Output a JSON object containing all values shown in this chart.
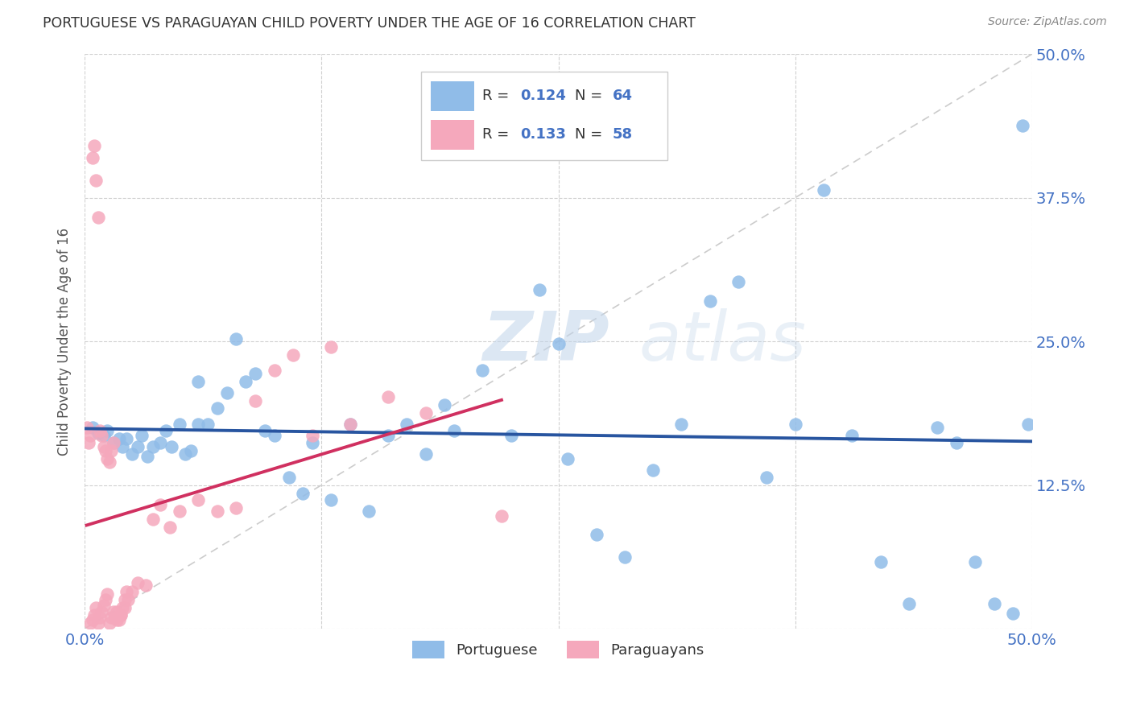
{
  "title": "PORTUGUESE VS PARAGUAYAN CHILD POVERTY UNDER THE AGE OF 16 CORRELATION CHART",
  "source": "Source: ZipAtlas.com",
  "ylabel": "Child Poverty Under the Age of 16",
  "xlim": [
    0.0,
    0.5
  ],
  "ylim": [
    0.0,
    0.5
  ],
  "xticks": [
    0.0,
    0.125,
    0.25,
    0.375,
    0.5
  ],
  "yticks": [
    0.0,
    0.125,
    0.25,
    0.375,
    0.5
  ],
  "xticklabels": [
    "0.0%",
    "",
    "",
    "",
    "50.0%"
  ],
  "yticklabels_right": [
    "",
    "12.5%",
    "25.0%",
    "37.5%",
    "50.0%"
  ],
  "portuguese_R": "0.124",
  "portuguese_N": "64",
  "paraguayan_R": "0.133",
  "paraguayan_N": "58",
  "portuguese_color": "#90bce8",
  "paraguayan_color": "#f5a8bc",
  "regression_blue": "#2855a0",
  "regression_pink": "#d03060",
  "diagonal_color": "#cccccc",
  "background_color": "#ffffff",
  "watermark_zip": "ZIP",
  "watermark_atlas": "atlas",
  "grid_color": "#d0d0d0",
  "title_color": "#333333",
  "tick_color": "#4472c4",
  "source_color": "#888888",
  "legend_border": "#cccccc",
  "portuguese_x": [
    0.004,
    0.007,
    0.01,
    0.012,
    0.015,
    0.018,
    0.02,
    0.022,
    0.025,
    0.028,
    0.03,
    0.033,
    0.036,
    0.04,
    0.043,
    0.046,
    0.05,
    0.053,
    0.056,
    0.06,
    0.065,
    0.07,
    0.075,
    0.08,
    0.085,
    0.09,
    0.095,
    0.1,
    0.108,
    0.115,
    0.12,
    0.13,
    0.14,
    0.15,
    0.16,
    0.17,
    0.18,
    0.195,
    0.21,
    0.225,
    0.24,
    0.255,
    0.27,
    0.285,
    0.3,
    0.315,
    0.33,
    0.345,
    0.36,
    0.375,
    0.39,
    0.405,
    0.42,
    0.435,
    0.45,
    0.46,
    0.47,
    0.48,
    0.49,
    0.495,
    0.498,
    0.25,
    0.19,
    0.06
  ],
  "portuguese_y": [
    0.175,
    0.17,
    0.168,
    0.172,
    0.162,
    0.165,
    0.158,
    0.165,
    0.152,
    0.158,
    0.168,
    0.15,
    0.158,
    0.162,
    0.172,
    0.158,
    0.178,
    0.152,
    0.155,
    0.215,
    0.178,
    0.192,
    0.205,
    0.252,
    0.215,
    0.222,
    0.172,
    0.168,
    0.132,
    0.118,
    0.162,
    0.112,
    0.178,
    0.102,
    0.168,
    0.178,
    0.152,
    0.172,
    0.225,
    0.168,
    0.295,
    0.148,
    0.082,
    0.062,
    0.138,
    0.178,
    0.285,
    0.302,
    0.132,
    0.178,
    0.382,
    0.168,
    0.058,
    0.022,
    0.175,
    0.162,
    0.058,
    0.022,
    0.013,
    0.438,
    0.178,
    0.248,
    0.195,
    0.178
  ],
  "paraguayan_x": [
    0.001,
    0.002,
    0.003,
    0.004,
    0.005,
    0.006,
    0.007,
    0.008,
    0.009,
    0.01,
    0.011,
    0.012,
    0.013,
    0.014,
    0.015,
    0.016,
    0.017,
    0.018,
    0.019,
    0.02,
    0.021,
    0.022,
    0.003,
    0.004,
    0.005,
    0.006,
    0.007,
    0.008,
    0.009,
    0.01,
    0.011,
    0.012,
    0.013,
    0.014,
    0.015,
    0.017,
    0.019,
    0.021,
    0.023,
    0.025,
    0.028,
    0.032,
    0.036,
    0.04,
    0.045,
    0.05,
    0.06,
    0.07,
    0.08,
    0.09,
    0.1,
    0.11,
    0.12,
    0.13,
    0.14,
    0.16,
    0.18,
    0.22
  ],
  "paraguayan_y": [
    0.175,
    0.162,
    0.168,
    0.41,
    0.42,
    0.39,
    0.358,
    0.172,
    0.168,
    0.158,
    0.155,
    0.148,
    0.145,
    0.155,
    0.162,
    0.01,
    0.015,
    0.008,
    0.012,
    0.018,
    0.025,
    0.032,
    0.005,
    0.008,
    0.012,
    0.018,
    0.005,
    0.01,
    0.015,
    0.02,
    0.025,
    0.03,
    0.005,
    0.01,
    0.015,
    0.008,
    0.012,
    0.018,
    0.025,
    0.032,
    0.04,
    0.038,
    0.095,
    0.108,
    0.088,
    0.102,
    0.112,
    0.102,
    0.105,
    0.198,
    0.225,
    0.238,
    0.168,
    0.245,
    0.178,
    0.202,
    0.188,
    0.098
  ]
}
